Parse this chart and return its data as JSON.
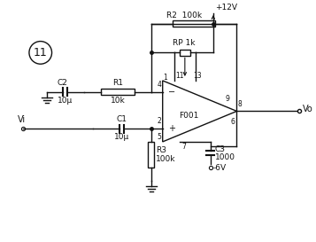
{
  "bg_color": "#ffffff",
  "line_color": "#111111",
  "text_color": "#111111",
  "title": "11",
  "R1_label": "R1",
  "R1_value": "10k",
  "R2_label": "R2",
  "R2_value": "100k",
  "RP_label": "RP",
  "RP_value": "1k",
  "R3_label": "R3",
  "R3_value": "100k",
  "C1_label": "C1",
  "C1_value": "10μ",
  "C2_label": "C2",
  "C2_value": "10μ",
  "C3_label": "C3",
  "C3_value": "1000",
  "opamp_label": "F001",
  "Vcc": "+12V",
  "Vee": "-6V",
  "Vi": "Vi",
  "Vo": "Vo"
}
